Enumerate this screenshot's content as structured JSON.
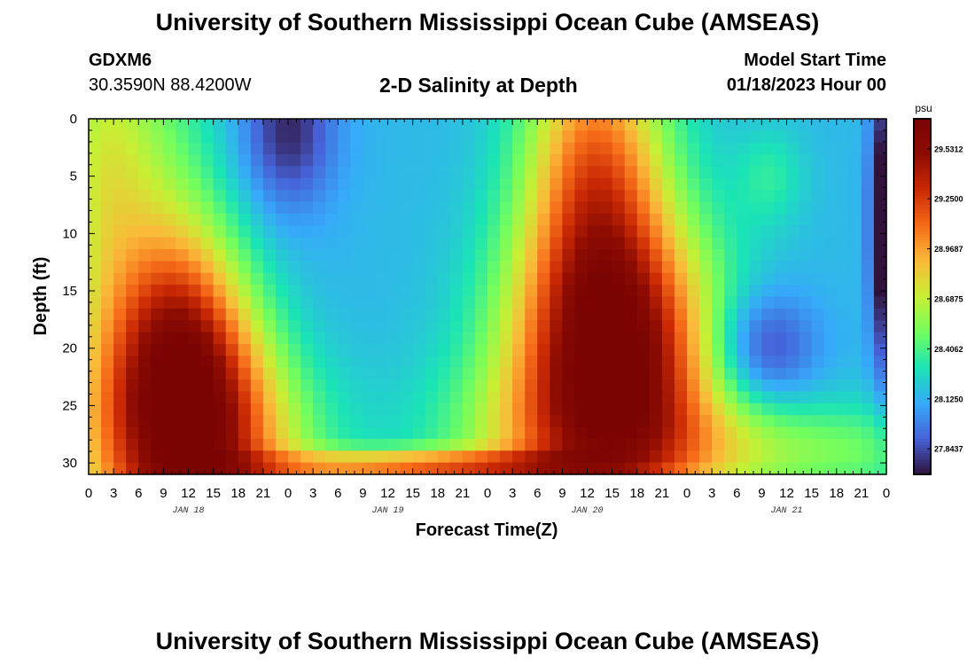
{
  "header": {
    "title": "University of Southern Mississippi Ocean Cube (AMSEAS)",
    "station_id": "GDXM6",
    "coordinates": "30.3590N  88.4200W",
    "subtitle": "2-D Salinity at Depth",
    "model_start_label": "Model Start Time",
    "model_start_value": "01/18/2023 Hour 00"
  },
  "footer": {
    "title_repeat": "University of Southern Mississippi Ocean Cube (AMSEAS)"
  },
  "chart_data": {
    "type": "heatmap",
    "title": "2-D Salinity at Depth",
    "xlabel": "Forecast Time(Z)",
    "ylabel": "Depth (ft)",
    "x_range_hours": [
      0,
      96
    ],
    "y_range_ft": [
      0,
      31
    ],
    "x_tick_labels": [
      "0",
      "3",
      "6",
      "9",
      "12",
      "15",
      "18",
      "21",
      "0",
      "3",
      "6",
      "9",
      "12",
      "15",
      "18",
      "21",
      "0",
      "3",
      "6",
      "9",
      "12",
      "15",
      "18",
      "21",
      "0",
      "3",
      "6",
      "9",
      "12",
      "15",
      "18",
      "21",
      "0"
    ],
    "day_labels": [
      "JAN 18",
      "JAN 19",
      "JAN 20",
      "JAN 21"
    ],
    "y_ticks": [
      0,
      5,
      10,
      15,
      20,
      25,
      30
    ],
    "colorbar": {
      "unit": "psu",
      "range": [
        27.7,
        29.7
      ],
      "tick_labels": [
        "29.5312",
        "29.2500",
        "28.9687",
        "28.6875",
        "28.4062",
        "28.1250",
        "27.8437"
      ],
      "tick_values": [
        29.5312,
        29.25,
        28.9687,
        28.6875,
        28.4062,
        28.125,
        27.8437
      ]
    },
    "grid": false,
    "field": {
      "base_psu": 28.15,
      "features": [
        {
          "kind": "high",
          "t_hours": 12,
          "depth_ft": 28,
          "sigma_t": 9,
          "sigma_d": 8,
          "amp": 1.45
        },
        {
          "kind": "high",
          "t_hours": 11,
          "depth_ft": 18,
          "sigma_t": 5.5,
          "sigma_d": 7,
          "amp": 0.7
        },
        {
          "kind": "high",
          "t_hours": 6,
          "depth_ft": 4,
          "sigma_t": 6,
          "sigma_d": 10,
          "amp": 0.35
        },
        {
          "kind": "high",
          "t_hours": 1,
          "depth_ft": 5,
          "sigma_t": 4,
          "sigma_d": 12,
          "amp": 0.3
        },
        {
          "kind": "low",
          "t_hours": 24,
          "depth_ft": 1,
          "sigma_t": 4,
          "sigma_d": 5,
          "amp": -0.4
        },
        {
          "kind": "low",
          "t_hours": 24,
          "depth_ft": 20,
          "sigma_t": 6,
          "sigma_d": 6,
          "amp": -0.1
        },
        {
          "kind": "high",
          "t_hours": 40,
          "depth_ft": 30.3,
          "sigma_t": 14,
          "sigma_d": 1.0,
          "amp": 0.85
        },
        {
          "kind": "high",
          "t_hours": 63,
          "depth_ft": 20,
          "sigma_t": 8.5,
          "sigma_d": 8,
          "amp": 1.45
        },
        {
          "kind": "high",
          "t_hours": 61,
          "depth_ft": 4,
          "sigma_t": 6,
          "sigma_d": 9,
          "amp": 0.9
        },
        {
          "kind": "high",
          "t_hours": 60,
          "depth_ft": 28,
          "sigma_t": 12,
          "sigma_d": 5,
          "amp": 0.5
        },
        {
          "kind": "low",
          "t_hours": 81,
          "depth_ft": 20,
          "sigma_t": 4.5,
          "sigma_d": 3.5,
          "amp": -0.4
        },
        {
          "kind": "low",
          "t_hours": 95.7,
          "depth_ft": 9,
          "sigma_t": 1.2,
          "sigma_d": 9,
          "amp": -0.6
        },
        {
          "kind": "high",
          "t_hours": 86,
          "depth_ft": 29,
          "sigma_t": 18,
          "sigma_d": 3,
          "amp": 0.35
        },
        {
          "kind": "high",
          "t_hours": 82,
          "depth_ft": 5,
          "sigma_t": 3,
          "sigma_d": 3,
          "amp": 0.18
        }
      ]
    }
  }
}
